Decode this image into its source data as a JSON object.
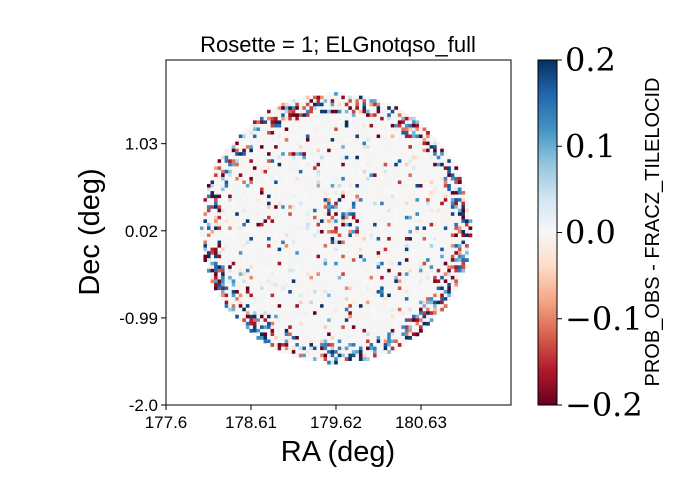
{
  "chart_data": {
    "type": "heatmap",
    "title": "Rosette = 1; ELGnotqso_full",
    "xlabel": "RA (deg)",
    "ylabel": "Dec (deg)",
    "xlim": [
      177.6,
      181.7
    ],
    "ylim": [
      -2.0,
      2.0
    ],
    "x_ticks": [
      177.6,
      178.61,
      179.62,
      180.63
    ],
    "x_tick_labels": [
      "177.6",
      "178.61",
      "179.62",
      "180.63"
    ],
    "y_ticks": [
      -2.0,
      -0.99,
      0.02,
      1.03
    ],
    "y_tick_labels": [
      "-2.0",
      "-0.99",
      "0.02",
      "1.03"
    ],
    "colormap": "RdBu",
    "vmin": -0.2,
    "vmax": 0.2,
    "colorbar_ticks": [
      -0.2,
      -0.1,
      0.0,
      0.1,
      0.2
    ],
    "colorbar_tick_labels": [
      "−0.2",
      "−0.1",
      "0.0",
      "0.1",
      "0.2"
    ],
    "colorbar_label": "PROB_OBS - FRACZ_TILELOCID",
    "field": {
      "shape": "circular rosette",
      "center_ra": 179.62,
      "center_dec": 0.05,
      "radius_deg": 1.6,
      "description": "grid of binned differences; mostly ~0 in the interior with scattered strong positive (blue) and negative (red) pixels concentrated near the rim and a clump near the center"
    }
  }
}
